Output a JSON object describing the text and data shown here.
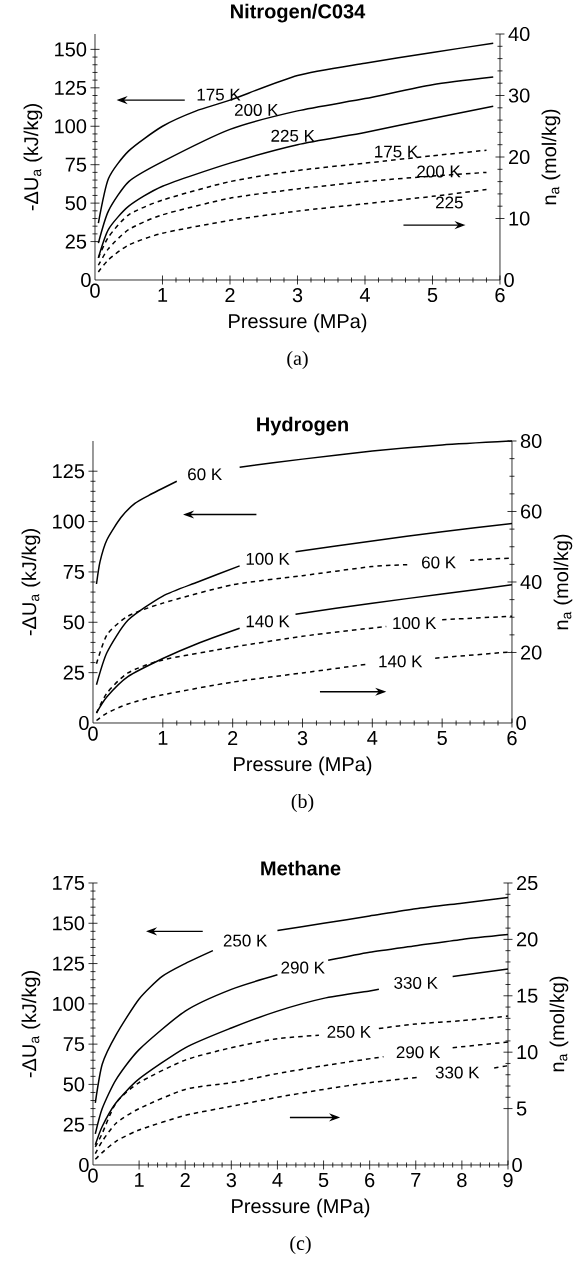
{
  "chart_data": [
    {
      "type": "line",
      "title": "Nitrogen/C034",
      "xlabel": "Pressure (MPa)",
      "ylabel": "-ΔU$_{a}$ (kJ/kg)",
      "y2label": "n$_{a}$ (mol/kg)",
      "annotations": [
        "(a)"
      ],
      "xlim": [
        0,
        6
      ],
      "xticks": [
        0,
        1,
        2,
        3,
        4,
        5,
        6
      ],
      "ylim": [
        0,
        160
      ],
      "yticks": [
        0,
        25,
        50,
        75,
        100,
        125,
        150
      ],
      "y2lim": [
        0,
        40
      ],
      "y2ticks": [
        0,
        10,
        20,
        30,
        40
      ],
      "series": [
        {
          "name": "175 K",
          "color": "#000000",
          "line_style": "solid",
          "x": [
            0.05,
            0.2,
            0.5,
            1,
            1.5,
            2,
            3,
            4,
            5,
            5.9
          ],
          "values": [
            37,
            66,
            84,
            100,
            110,
            117,
            133,
            141,
            148,
            154
          ]
        },
        {
          "name": "200 K",
          "color": "#000000",
          "line_style": "solid",
          "x": [
            0.05,
            0.2,
            0.5,
            1,
            2,
            3,
            4,
            5,
            5.9
          ],
          "values": [
            24,
            45,
            64,
            77,
            98,
            110,
            118,
            127,
            132
          ]
        },
        {
          "name": "225 K",
          "color": "#000000",
          "line_style": "solid",
          "x": [
            0.05,
            0.2,
            0.5,
            1,
            2,
            3,
            4,
            5,
            5.9
          ],
          "values": [
            14.5,
            33,
            48,
            61,
            76,
            88,
            96,
            105,
            113
          ]
        },
        {
          "name": "175 K",
          "color": "#000000",
          "line_style": "dashed",
          "axis": "y2",
          "x": [
            0.05,
            0.2,
            0.5,
            1,
            2,
            3,
            4,
            5,
            5.8
          ],
          "values": [
            3.6,
            7,
            10.6,
            13,
            16,
            17.8,
            19,
            20.2,
            21.1
          ]
        },
        {
          "name": "200 K",
          "color": "#000000",
          "line_style": "dashed",
          "axis": "y2",
          "x": [
            0.05,
            0.2,
            0.5,
            1,
            2,
            3,
            4,
            5,
            5.8
          ],
          "values": [
            2.4,
            5.1,
            8.2,
            10.6,
            13.3,
            14.8,
            16,
            16.9,
            17.5
          ]
        },
        {
          "name": "225",
          "color": "#000000",
          "line_style": "dashed",
          "axis": "y2",
          "x": [
            0.05,
            0.2,
            0.5,
            1,
            2,
            3,
            4,
            5,
            5.8
          ],
          "values": [
            1.3,
            3.3,
            5.7,
            7.6,
            9.7,
            11.2,
            12.4,
            13.6,
            14.7
          ]
        }
      ]
    },
    {
      "type": "line",
      "title": "Hydrogen",
      "xlabel": "Pressure (MPa)",
      "ylabel": "-ΔU$_{a}$ (kJ/kg)",
      "y2label": "n$_{a}$ (mol/kg)",
      "annotations": [
        "(b)"
      ],
      "xlim": [
        0,
        6
      ],
      "xticks": [
        0,
        1,
        2,
        3,
        4,
        5,
        6
      ],
      "ylim": [
        0,
        140
      ],
      "yticks": [
        0,
        25,
        50,
        75,
        100,
        125
      ],
      "y2lim": [
        0,
        80
      ],
      "y2ticks": [
        0,
        20,
        40,
        60,
        80
      ],
      "series": [
        {
          "name": "60 K",
          "color": "#000000",
          "line_style": "solid",
          "x": [
            0.05,
            0.1,
            0.2,
            0.4,
            0.6,
            0.8,
            1.2,
            1.6,
            2.1,
            3,
            4,
            5,
            6
          ],
          "values": [
            69,
            80,
            91,
            102,
            109,
            113,
            120,
            null,
            127,
            131,
            135,
            138,
            140
          ]
        },
        {
          "name": "100 K",
          "color": "#000000",
          "line_style": "solid",
          "x": [
            0.05,
            0.2,
            0.5,
            1,
            1.5,
            2.1,
            2.5,
            2.9,
            4,
            5,
            6
          ],
          "values": [
            19,
            35,
            51,
            63,
            70,
            78,
            null,
            85,
            90.4,
            95,
            99
          ]
        },
        {
          "name": "140 K",
          "color": "#000000",
          "line_style": "solid",
          "x": [
            0.05,
            0.2,
            0.5,
            1,
            1.5,
            2.1,
            2.5,
            2.9,
            4,
            5,
            6
          ],
          "values": [
            5,
            13,
            23,
            32,
            39.5,
            47,
            null,
            54,
            59.5,
            64,
            68.6
          ]
        },
        {
          "name": "60 K",
          "color": "#000000",
          "line_style": "dashed",
          "axis": "y2",
          "x": [
            0.05,
            0.2,
            0.5,
            1,
            2,
            3,
            4,
            4.5,
            4.95,
            5.4,
            6
          ],
          "values": [
            16.8,
            25,
            30.3,
            34,
            39.2,
            41.8,
            44.4,
            44.9,
            null,
            46.2,
            46.8
          ]
        },
        {
          "name": "100 K",
          "color": "#000000",
          "line_style": "dashed",
          "axis": "y2",
          "x": [
            0.05,
            0.2,
            0.5,
            1,
            2,
            3,
            4.2,
            4.6,
            5,
            6
          ],
          "values": [
            2.8,
            8.5,
            14.2,
            17.9,
            21.5,
            24.6,
            27.4,
            null,
            29.3,
            30.3
          ]
        },
        {
          "name": "140 K",
          "color": "#000000",
          "line_style": "dashed",
          "axis": "y2",
          "x": [
            0.05,
            0.2,
            0.5,
            1,
            2,
            3,
            3.9,
            4.4,
            4.9,
            6
          ],
          "values": [
            0.7,
            2.8,
            5.4,
            8,
            11.6,
            14.2,
            16.6,
            null,
            18.4,
            20.2
          ]
        }
      ]
    },
    {
      "type": "line",
      "title": "Methane",
      "xlabel": "Pressure (MPa)",
      "ylabel": "-ΔU$_{a}$ (kJ/kg)",
      "y2label": "n$_{a}$ (mol/kg)",
      "annotations": [
        "(c)"
      ],
      "xlim": [
        0,
        9
      ],
      "xticks": [
        0,
        1,
        2,
        3,
        4,
        5,
        6,
        7,
        8,
        9
      ],
      "ylim": [
        0,
        175
      ],
      "yticks": [
        0,
        25,
        50,
        75,
        100,
        125,
        150,
        175
      ],
      "y2lim": [
        0,
        25
      ],
      "y2ticks": [
        0,
        5,
        10,
        15,
        20,
        25
      ],
      "series": [
        {
          "name": "250 K",
          "color": "#000000",
          "line_style": "solid",
          "x": [
            0.05,
            0.2,
            0.5,
            1,
            1.5,
            2,
            2.6,
            3.3,
            4,
            5,
            6,
            7,
            8,
            9
          ],
          "values": [
            38.6,
            62.5,
            80.7,
            103,
            117,
            125,
            133,
            null,
            145.5,
            150,
            154.5,
            159,
            162.5,
            166
          ]
        },
        {
          "name": "290 K",
          "color": "#000000",
          "line_style": "solid",
          "x": [
            0.05,
            0.2,
            0.5,
            1,
            2,
            3,
            4,
            4.55,
            5.1,
            6,
            7,
            8,
            9
          ],
          "values": [
            19.3,
            35,
            53,
            71.6,
            95.5,
            109,
            118,
            null,
            127,
            132,
            136,
            140,
            143
          ]
        },
        {
          "name": "330 K",
          "color": "#000000",
          "line_style": "solid",
          "x": [
            0.05,
            0.2,
            0.5,
            1,
            2,
            3,
            4,
            5,
            6,
            6.2,
            7,
            7.8,
            9
          ],
          "values": [
            12.5,
            23.9,
            38.6,
            53.4,
            72.7,
            85,
            95.5,
            103.4,
            108,
            109,
            null,
            117,
            121.6
          ]
        },
        {
          "name": "250 K",
          "color": "#000000",
          "line_style": "dashed",
          "axis": "y2",
          "x": [
            0.05,
            0.2,
            0.5,
            1,
            2,
            3,
            4,
            4.9,
            5.55,
            6.2,
            7,
            8,
            9
          ],
          "values": [
            1.6,
            2.8,
            5.5,
            7.3,
            9.3,
            10.4,
            11.2,
            11.5,
            null,
            12.1,
            12.5,
            12.8,
            13.2
          ]
        },
        {
          "name": "290 K",
          "color": "#000000",
          "line_style": "dashed",
          "axis": "y2",
          "x": [
            0.05,
            0.2,
            0.5,
            1,
            2,
            3,
            4,
            5,
            6.3,
            7.05,
            7.8,
            9
          ],
          "values": [
            1,
            2.1,
            3.7,
            5,
            6.7,
            7.3,
            8.1,
            8.8,
            9.6,
            null,
            10.4,
            10.9
          ]
        },
        {
          "name": "330 K",
          "color": "#000000",
          "line_style": "dashed",
          "axis": "y2",
          "x": [
            0.05,
            0.2,
            0.5,
            1,
            2,
            3,
            4,
            5,
            6,
            7.1,
            7.9,
            8.7,
            9
          ],
          "values": [
            0.5,
            1.1,
            2.1,
            3.1,
            4.4,
            5.2,
            6,
            6.7,
            7.3,
            7.8,
            null,
            8.6,
            8.8
          ]
        }
      ]
    }
  ]
}
